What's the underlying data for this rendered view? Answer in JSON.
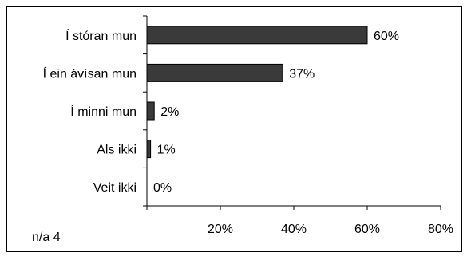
{
  "chart_data": {
    "type": "bar",
    "orientation": "horizontal",
    "categories": [
      "Í stóran mun",
      "Í ein ávísan mun",
      "Í minni mun",
      "Als ikki",
      "Veit ikki"
    ],
    "values": [
      60,
      37,
      2,
      1,
      0
    ],
    "value_labels": [
      "60%",
      "37%",
      "2%",
      "1%",
      "0%"
    ],
    "xlim": [
      0,
      80
    ],
    "x_ticks": [
      20,
      40,
      60,
      80
    ],
    "x_tick_labels": [
      "20%",
      "40%",
      "60%",
      "80%"
    ],
    "grid": false,
    "legend": "none",
    "bar_color": "#3a3a3a",
    "note": "n/a 4"
  }
}
